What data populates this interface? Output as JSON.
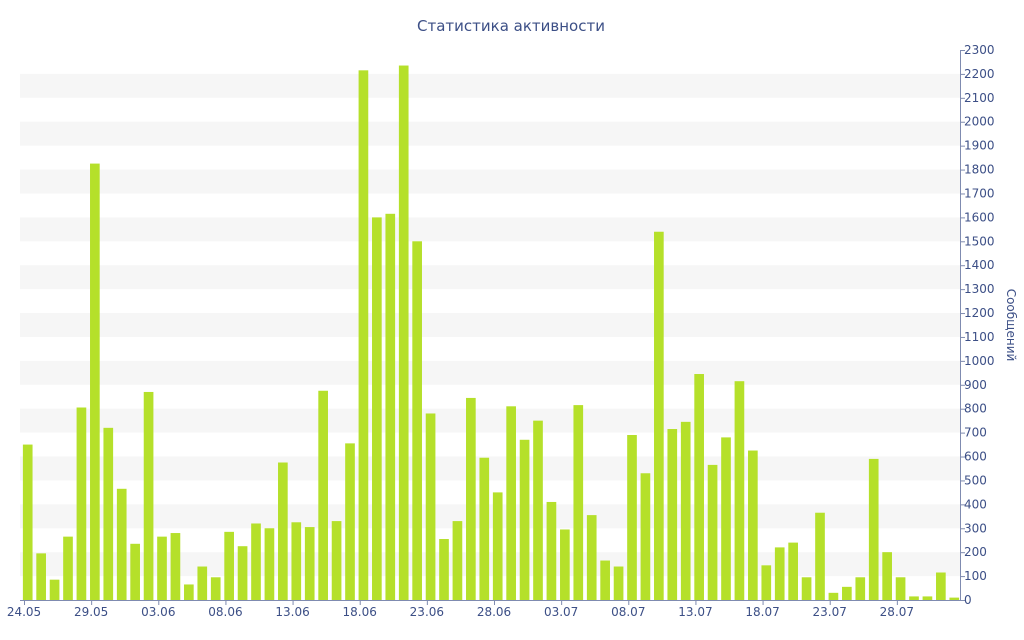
{
  "chart_data": {
    "type": "bar",
    "title": "Статистика активности",
    "xlabel": "",
    "ylabel": "Сообщений",
    "ylim": [
      0,
      2300
    ],
    "y_axis_side": "right",
    "grid": "alternating horizontal bands",
    "legend": "none",
    "bar_color": "#b5e02a",
    "band_color": "#f6f6f6",
    "text_color": "#3c4f86",
    "axis_color": "#7f8bb0",
    "y_ticks": [
      0,
      100,
      200,
      300,
      400,
      500,
      600,
      700,
      800,
      900,
      1000,
      1100,
      1200,
      1300,
      1400,
      1500,
      1600,
      1700,
      1800,
      1900,
      2000,
      2100,
      2200,
      2300
    ],
    "x_ticks": [
      {
        "label": "24.05",
        "index": 0
      },
      {
        "label": "29.05",
        "index": 5
      },
      {
        "label": "03.06",
        "index": 10
      },
      {
        "label": "08.06",
        "index": 15
      },
      {
        "label": "13.06",
        "index": 20
      },
      {
        "label": "18.06",
        "index": 25
      },
      {
        "label": "23.06",
        "index": 30
      },
      {
        "label": "28.06",
        "index": 35
      },
      {
        "label": "03.07",
        "index": 40
      },
      {
        "label": "08.07",
        "index": 45
      },
      {
        "label": "13.07",
        "index": 50
      },
      {
        "label": "18.07",
        "index": 55
      },
      {
        "label": "23.07",
        "index": 60
      },
      {
        "label": "28.07",
        "index": 65
      }
    ],
    "values": [
      650,
      195,
      85,
      265,
      805,
      1825,
      720,
      465,
      235,
      870,
      265,
      280,
      65,
      140,
      95,
      285,
      225,
      320,
      300,
      575,
      325,
      305,
      875,
      330,
      655,
      2215,
      1600,
      1615,
      2235,
      1500,
      780,
      255,
      330,
      845,
      595,
      450,
      810,
      670,
      750,
      410,
      295,
      815,
      355,
      165,
      140,
      690,
      530,
      1540,
      715,
      745,
      945,
      565,
      680,
      915,
      625,
      145,
      220,
      240,
      95,
      365,
      30,
      55,
      95,
      590,
      200,
      95,
      15,
      15,
      115,
      10
    ]
  }
}
